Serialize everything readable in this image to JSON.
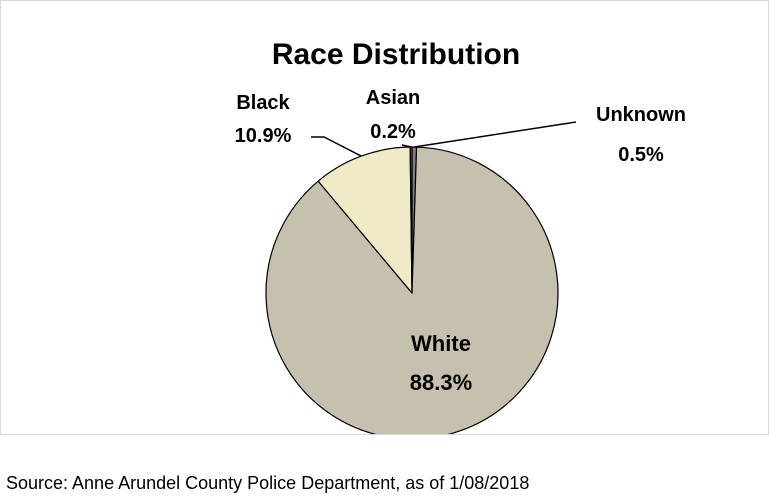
{
  "chart_data": {
    "type": "pie",
    "title": "Race Distribution",
    "slices": [
      {
        "label": "Unknown",
        "value": 0.5,
        "value_label": "0.5%",
        "color": "#7f7f7f"
      },
      {
        "label": "White",
        "value": 88.3,
        "value_label": "88.3%",
        "color": "#c6c0af"
      },
      {
        "label": "Black",
        "value": 10.9,
        "value_label": "10.9%",
        "color": "#efeac8"
      },
      {
        "label": "Asian",
        "value": 0.2,
        "value_label": "0.2%",
        "color": "#c0504d"
      }
    ],
    "start_angle": "12 o'clock",
    "direction": "clockwise",
    "legend": "none"
  },
  "source": "Source: Anne Arundel County Police Department, as of 1/08/2018"
}
